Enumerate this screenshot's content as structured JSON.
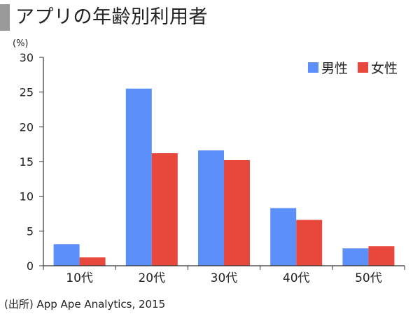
{
  "title": "アプリの年齢別利用者",
  "source": "(出所) App Ape Analytics, 2015",
  "chart_data": {
    "type": "bar",
    "unit_label": "(%)",
    "categories": [
      "10代",
      "20代",
      "30代",
      "40代",
      "50代"
    ],
    "series": [
      {
        "name": "男性",
        "color": "#5b8ff9",
        "values": [
          3.1,
          25.5,
          16.6,
          8.3,
          2.5
        ]
      },
      {
        "name": "女性",
        "color": "#e8473b",
        "values": [
          1.2,
          16.2,
          15.2,
          6.6,
          2.8
        ]
      }
    ],
    "yticks": [
      0,
      5,
      10,
      15,
      20,
      25,
      30
    ],
    "ylim": [
      0,
      30
    ],
    "legend": "top-right",
    "grid": false
  }
}
